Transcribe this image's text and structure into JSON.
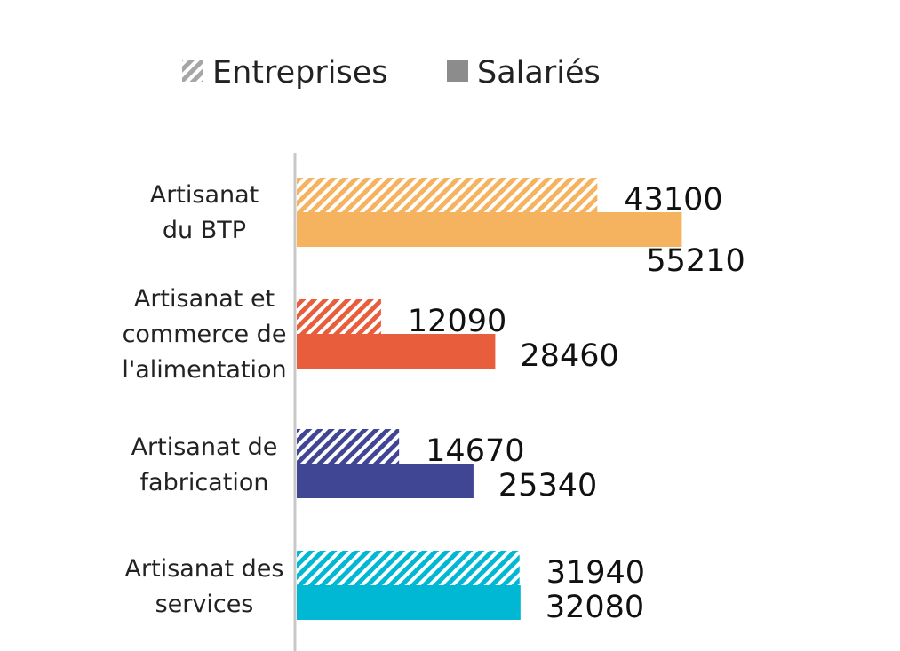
{
  "chart_data": {
    "type": "bar",
    "orientation": "horizontal",
    "categories": [
      [
        "Artisanat",
        "du BTP"
      ],
      [
        "Artisanat et",
        "commerce de",
        "l'alimentation"
      ],
      [
        "Artisanat de",
        "fabrication"
      ],
      [
        "Artisanat des",
        "services"
      ]
    ],
    "series": [
      {
        "name": "Entreprises",
        "pattern": "hatched",
        "values": [
          43100,
          12090,
          14670,
          31940
        ]
      },
      {
        "name": "Salariés",
        "pattern": "solid",
        "values": [
          55210,
          28460,
          25340,
          32080
        ]
      }
    ],
    "category_colors": [
      "#f5b25f",
      "#e85d3c",
      "#404693",
      "#00b8d4"
    ],
    "legend": {
      "position": "top",
      "entries": [
        {
          "label": "Entreprises",
          "swatch": "hatched",
          "color": "#a6a6a6"
        },
        {
          "label": "Salariés",
          "swatch": "solid",
          "color": "#8c8c8c"
        }
      ]
    },
    "xlim": [
      0,
      60000
    ],
    "grid": false,
    "title": "",
    "xlabel": "",
    "ylabel": ""
  }
}
